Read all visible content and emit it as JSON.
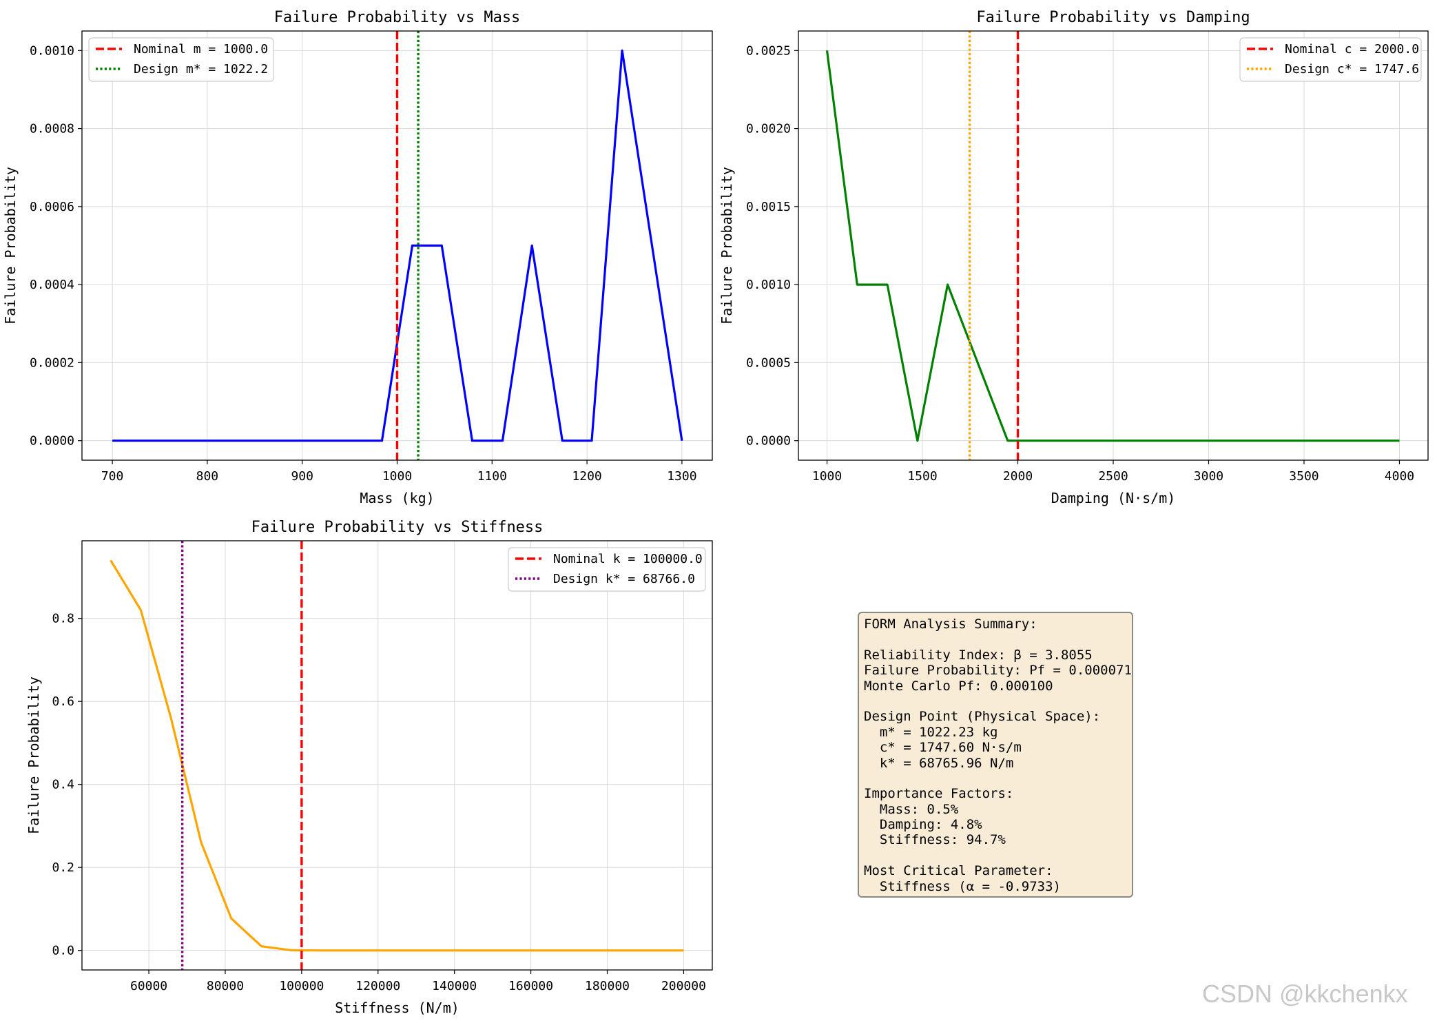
{
  "chart_data": [
    {
      "type": "line",
      "title": "Failure Probability vs Mass",
      "xlabel": "Mass (kg)",
      "ylabel": "Failure Probability",
      "xlim": [
        668,
        1332
      ],
      "ylim": [
        -5e-05,
        0.00105
      ],
      "xticks": [
        700,
        800,
        900,
        1000,
        1100,
        1200,
        1300
      ],
      "yticks": [
        0.0,
        0.0002,
        0.0004,
        0.0006,
        0.0008,
        0.001
      ],
      "yticks_fmt": 4,
      "grid": true,
      "legend": "top-left",
      "series": [
        {
          "color": "#0000ff",
          "x": [
            700,
            984,
            1016,
            1047,
            1079,
            1111,
            1142,
            1174,
            1205,
            1237,
            1300
          ],
          "y": [
            0,
            0,
            0.0005,
            0.0005,
            0,
            0,
            0.0005,
            0,
            0,
            0.001,
            0
          ]
        }
      ],
      "vlines": [
        {
          "x": 1000.0,
          "color": "#ff0000",
          "style": "dashed",
          "label": "Nominal m = 1000.0"
        },
        {
          "x": 1022.2,
          "color": "#008000",
          "style": "dotted",
          "label": "Design m* = 1022.2"
        }
      ]
    },
    {
      "type": "line",
      "title": "Failure Probability vs Damping",
      "xlabel": "Damping (N·s/m)",
      "ylabel": "Failure Probability",
      "xlim": [
        850,
        4150
      ],
      "ylim": [
        -0.000125,
        0.002625
      ],
      "xticks": [
        1000,
        1500,
        2000,
        2500,
        3000,
        3500,
        4000
      ],
      "yticks": [
        0.0,
        0.0005,
        0.001,
        0.0015,
        0.002,
        0.0025
      ],
      "yticks_fmt": 4,
      "grid": true,
      "legend": "top-right",
      "series": [
        {
          "color": "#008000",
          "x": [
            1000,
            1158,
            1316,
            1474,
            1632,
            1947,
            2105,
            4000
          ],
          "y": [
            0.0025,
            0.001,
            0.001,
            0,
            0.001,
            0,
            0,
            0
          ]
        }
      ],
      "vlines": [
        {
          "x": 2000.0,
          "color": "#ff0000",
          "style": "dashed",
          "label": "Nominal c = 2000.0"
        },
        {
          "x": 1747.6,
          "color": "#ffa500",
          "style": "dotted",
          "label": "Design c* = 1747.6"
        }
      ]
    },
    {
      "type": "line",
      "title": "Failure Probability vs Stiffness",
      "xlabel": "Stiffness (N/m)",
      "ylabel": "Failure Probability",
      "xlim": [
        42500,
        207500
      ],
      "ylim": [
        -0.047,
        0.987
      ],
      "xticks": [
        60000,
        80000,
        100000,
        120000,
        140000,
        160000,
        180000,
        200000
      ],
      "yticks": [
        0.0,
        0.2,
        0.4,
        0.6,
        0.8
      ],
      "yticks_fmt": 1,
      "grid": true,
      "legend": "top-right",
      "series": [
        {
          "color": "#ffa500",
          "x": [
            50000,
            57900,
            65800,
            73700,
            81600,
            89500,
            97400,
            105300,
            200000
          ],
          "y": [
            0.94,
            0.82,
            0.56,
            0.26,
            0.077,
            0.01,
            0.0005,
            0,
            0
          ]
        }
      ],
      "vlines": [
        {
          "x": 100000.0,
          "color": "#ff0000",
          "style": "dashed",
          "label": "Nominal k = 100000.0"
        },
        {
          "x": 68766.0,
          "color": "#800080",
          "style": "dotted",
          "label": "Design k* = 68766.0"
        }
      ]
    }
  ],
  "summary": {
    "lines": [
      "FORM Analysis Summary:",
      "",
      "Reliability Index: β = 3.8055",
      "Failure Probability: Pf = 0.000071",
      "Monte Carlo Pf: 0.000100",
      "",
      "Design Point (Physical Space):",
      "  m* = 1022.23 kg",
      "  c* = 1747.60 N·s/m",
      "  k* = 68765.96 N/m",
      "",
      "Importance Factors:",
      "  Mass: 0.5%",
      "  Damping: 4.8%",
      "  Stiffness: 94.7%",
      "",
      "Most Critical Parameter:",
      "  Stiffness (α = -0.9733)"
    ]
  },
  "watermark": "CSDN @kkchenkx"
}
